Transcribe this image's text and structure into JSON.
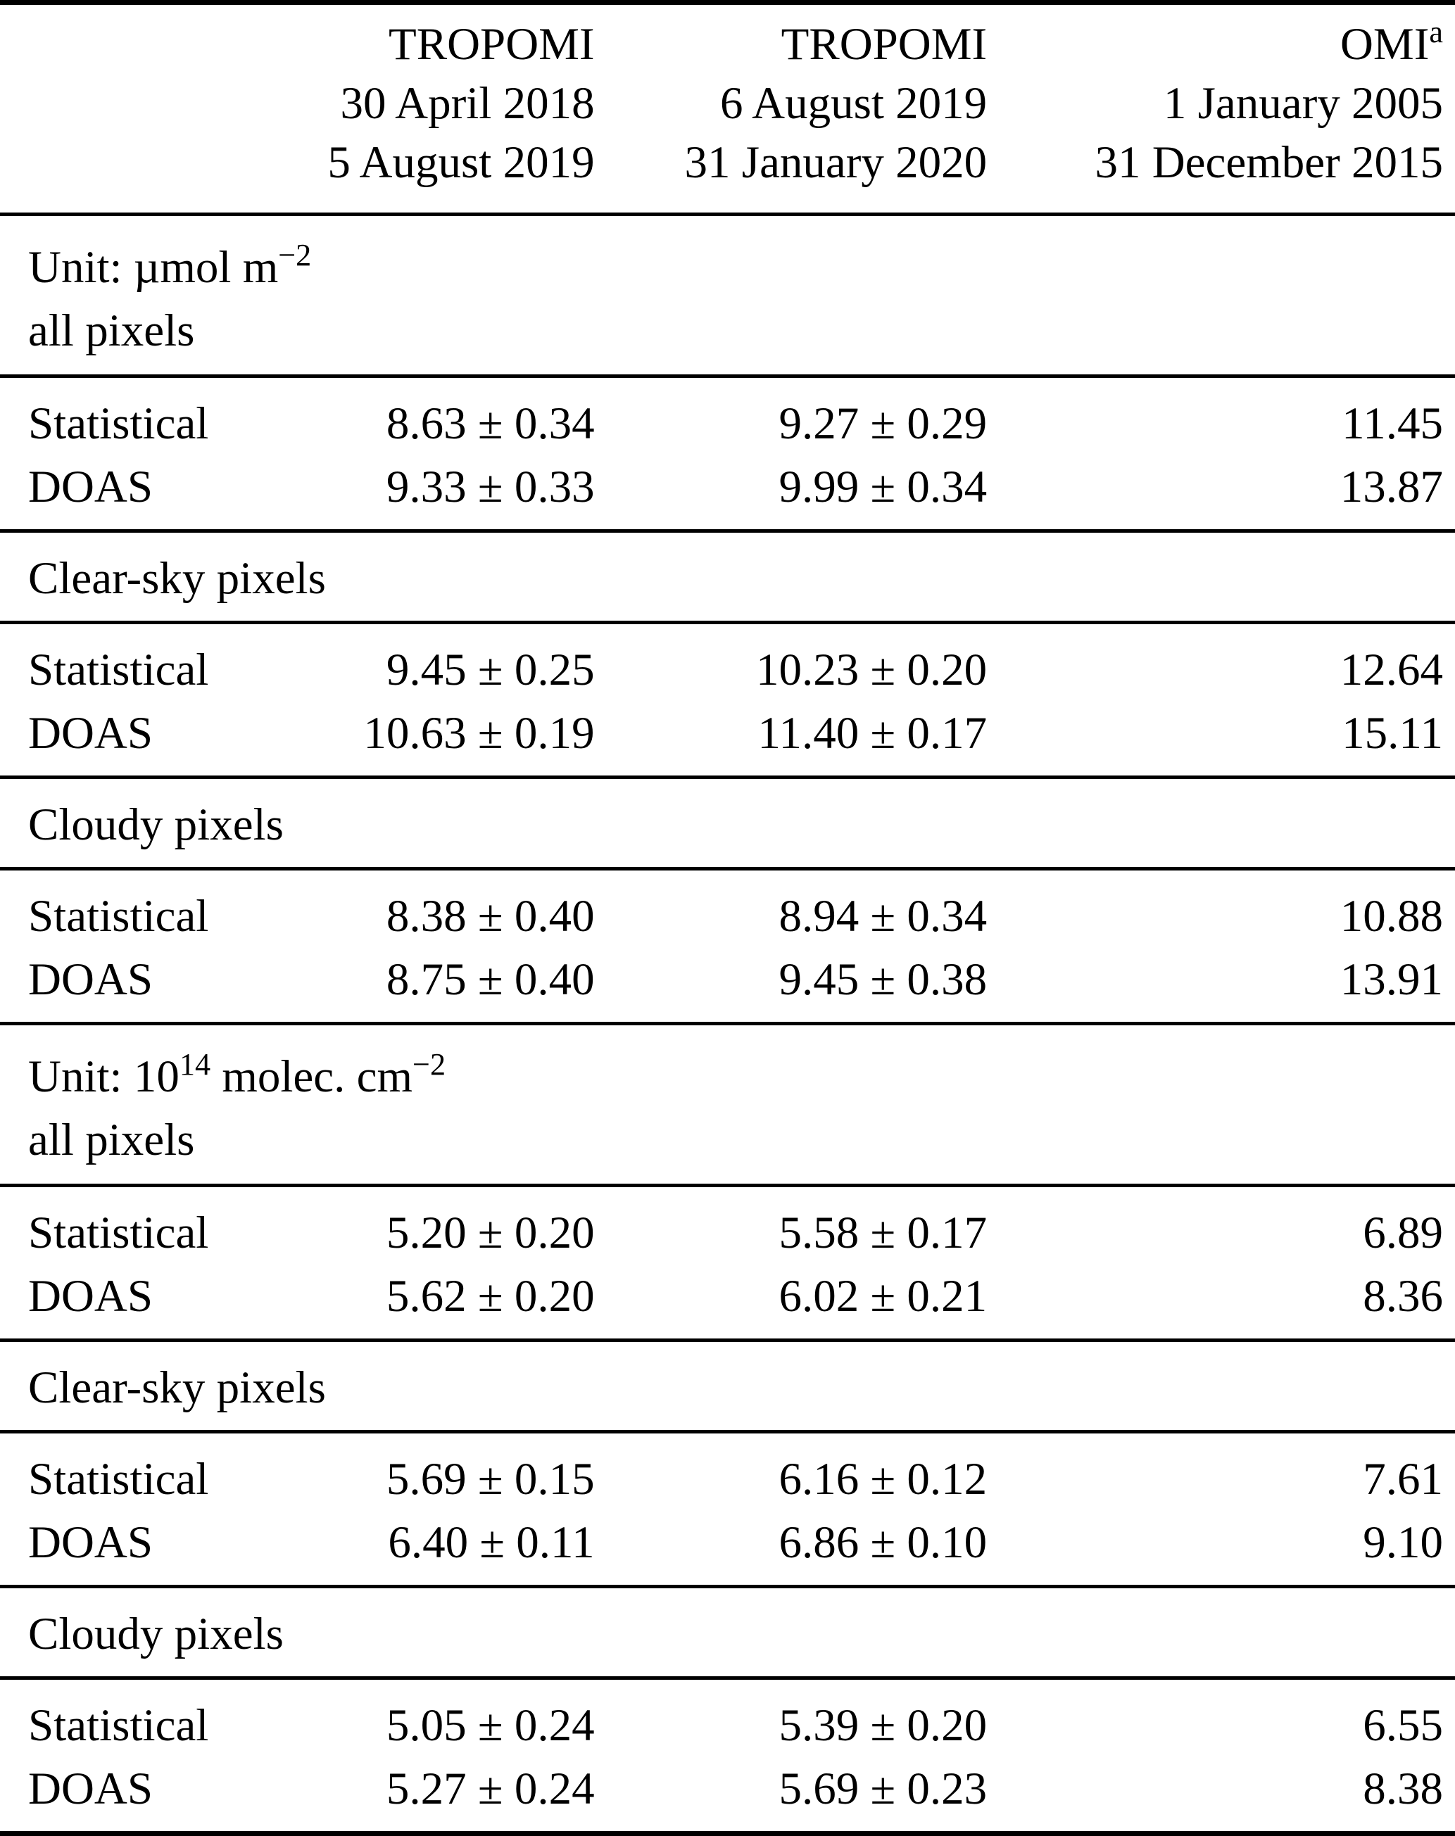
{
  "header": {
    "columns": [
      {
        "name": "TROPOMI",
        "period_start": "30 April 2018",
        "period_end": "5 August 2019"
      },
      {
        "name": "TROPOMI",
        "period_start": "6 August 2019",
        "period_end": "31 January 2020"
      },
      {
        "name": "OMI",
        "footnote_marker": "a",
        "period_start": "1 January 2005",
        "period_end": "31 December 2015"
      }
    ]
  },
  "sections": [
    {
      "title_parts": [
        {
          "text": "Unit: µmol m"
        },
        {
          "sup": "−2"
        }
      ],
      "subtitle": "all pixels",
      "rows": [
        {
          "label": "Statistical",
          "values": [
            "8.63 ± 0.34",
            "9.27 ± 0.29",
            "11.45"
          ]
        },
        {
          "label": "DOAS",
          "values": [
            "9.33 ± 0.33",
            "9.99 ± 0.34",
            "13.87"
          ]
        }
      ]
    },
    {
      "title_parts": [
        {
          "text": "Clear-sky pixels"
        }
      ],
      "rows": [
        {
          "label": "Statistical",
          "values": [
            "9.45 ± 0.25",
            "10.23 ± 0.20",
            "12.64"
          ]
        },
        {
          "label": "DOAS",
          "values": [
            "10.63 ± 0.19",
            "11.40 ± 0.17",
            "15.11"
          ]
        }
      ]
    },
    {
      "title_parts": [
        {
          "text": "Cloudy pixels"
        }
      ],
      "rows": [
        {
          "label": "Statistical",
          "values": [
            "8.38 ± 0.40",
            "8.94 ± 0.34",
            "10.88"
          ]
        },
        {
          "label": "DOAS",
          "values": [
            "8.75 ± 0.40",
            "9.45 ± 0.38",
            "13.91"
          ]
        }
      ]
    },
    {
      "title_parts": [
        {
          "text": "Unit: 10"
        },
        {
          "sup": "14"
        },
        {
          "text": " molec. cm"
        },
        {
          "sup": "−2"
        }
      ],
      "subtitle": "all pixels",
      "rows": [
        {
          "label": "Statistical",
          "values": [
            "5.20 ± 0.20",
            "5.58 ± 0.17",
            "6.89"
          ]
        },
        {
          "label": "DOAS",
          "values": [
            "5.62 ± 0.20",
            "6.02 ± 0.21",
            "8.36"
          ]
        }
      ]
    },
    {
      "title_parts": [
        {
          "text": "Clear-sky pixels"
        }
      ],
      "rows": [
        {
          "label": "Statistical",
          "values": [
            "5.69 ± 0.15",
            "6.16 ± 0.12",
            "7.61"
          ]
        },
        {
          "label": "DOAS",
          "values": [
            "6.40 ± 0.11",
            "6.86 ± 0.10",
            "9.10"
          ]
        }
      ]
    },
    {
      "title_parts": [
        {
          "text": "Cloudy pixels"
        }
      ],
      "rows": [
        {
          "label": "Statistical",
          "values": [
            "5.05 ± 0.24",
            "5.39 ± 0.20",
            "6.55"
          ]
        },
        {
          "label": "DOAS",
          "values": [
            "5.27 ± 0.24",
            "5.69 ± 0.23",
            "8.38"
          ]
        }
      ]
    }
  ]
}
